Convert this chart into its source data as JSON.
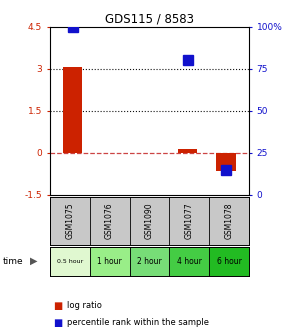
{
  "title": "GDS115 / 8583",
  "samples": [
    "GSM1075",
    "GSM1076",
    "GSM1090",
    "GSM1077",
    "GSM1078"
  ],
  "time_labels": [
    "0.5 hour",
    "1 hour",
    "2 hour",
    "4 hour",
    "6 hour"
  ],
  "log_ratio": [
    3.05,
    null,
    null,
    0.15,
    -0.65
  ],
  "percentile_rank": [
    100,
    null,
    null,
    80,
    15
  ],
  "ylim_left": [
    -1.5,
    4.5
  ],
  "ylim_right": [
    0,
    100
  ],
  "yticks_left": [
    -1.5,
    0,
    1.5,
    3,
    4.5
  ],
  "yticks_right": [
    0,
    25,
    50,
    75,
    100
  ],
  "bar_color_red": "#cc2200",
  "bar_color_blue": "#1111cc",
  "zero_line_color": "#cc4444",
  "dot_line_color": "#111111",
  "bg_sample_color": "#c8c8c8",
  "time_row_colors": [
    "#e0f8d0",
    "#99ee88",
    "#77dd77",
    "#44cc44",
    "#22bb22"
  ],
  "bar_width": 0.5,
  "percentile_marker_size": 7
}
